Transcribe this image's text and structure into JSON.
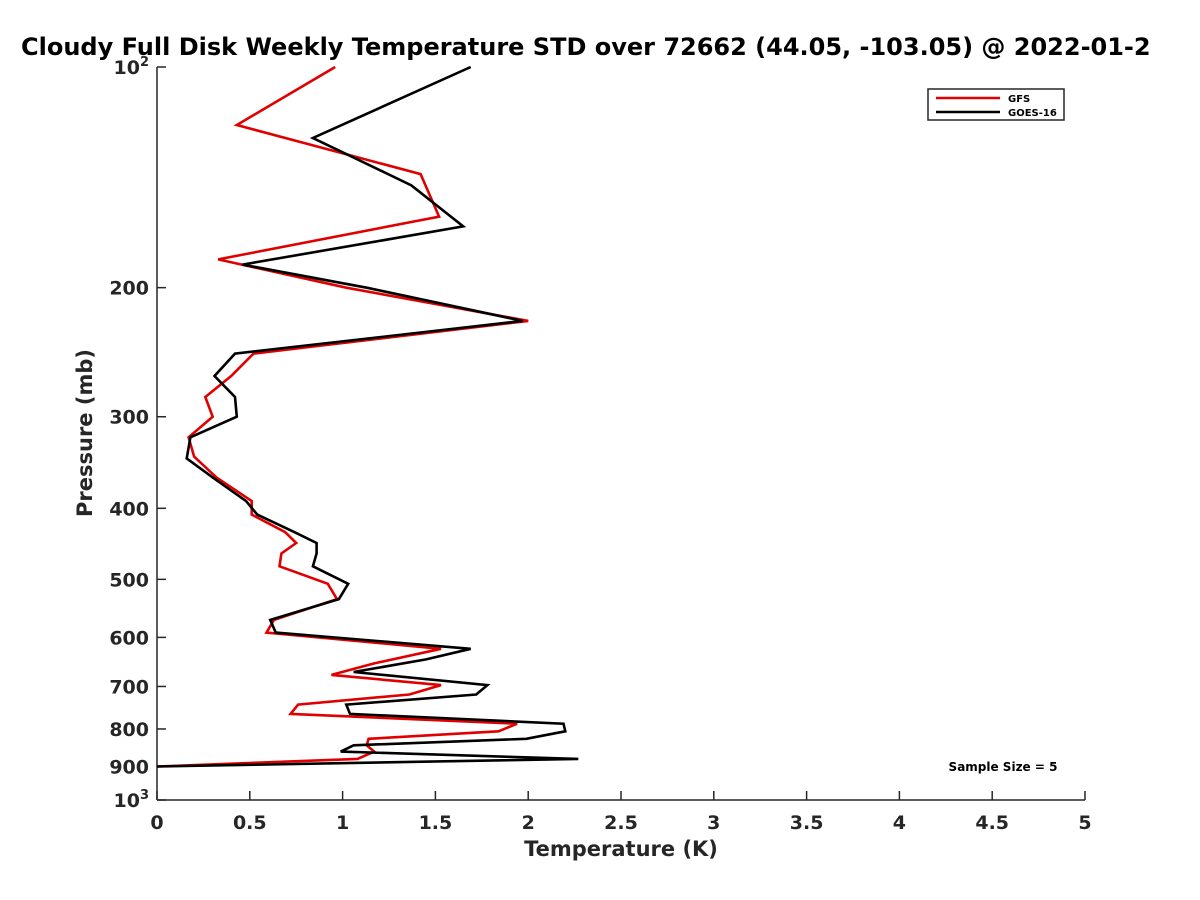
{
  "chart_data": {
    "type": "line",
    "title": "Cloudy Full Disk Weekly Temperature STD over 72662 (44.05, -103.05) @ 2022-01-2",
    "xlabel": "Temperature (K)",
    "ylabel": "Pressure (mb)",
    "xlim": [
      0,
      5
    ],
    "ylim": [
      100,
      1000
    ],
    "y_scale": "log",
    "y_reversed": true,
    "x_ticks": [
      "0",
      "0.5",
      "1",
      "1.5",
      "2",
      "2.5",
      "3",
      "3.5",
      "4",
      "4.5",
      "5"
    ],
    "y_ticks": [
      {
        "value": 100,
        "label": "10",
        "sup": "2"
      },
      {
        "value": 200,
        "label": "200",
        "sup": ""
      },
      {
        "value": 300,
        "label": "300",
        "sup": ""
      },
      {
        "value": 400,
        "label": "400",
        "sup": ""
      },
      {
        "value": 500,
        "label": "500",
        "sup": ""
      },
      {
        "value": 600,
        "label": "600",
        "sup": ""
      },
      {
        "value": 700,
        "label": "700",
        "sup": ""
      },
      {
        "value": 800,
        "label": "800",
        "sup": ""
      },
      {
        "value": 900,
        "label": "900",
        "sup": ""
      },
      {
        "value": 1000,
        "label": "10",
        "sup": "3"
      }
    ],
    "grid": false,
    "legend_position": "top-right",
    "annotation": "Sample Size = 5",
    "series": [
      {
        "name": "GFS",
        "color": "#e00000",
        "points": [
          [
            0.96,
            100
          ],
          [
            0.43,
            120
          ],
          [
            1.42,
            140
          ],
          [
            1.52,
            160
          ],
          [
            0.33,
            183
          ],
          [
            1.02,
            200
          ],
          [
            2.0,
            222
          ],
          [
            0.52,
            246
          ],
          [
            0.4,
            264
          ],
          [
            0.26,
            282
          ],
          [
            0.3,
            300
          ],
          [
            0.17,
            320
          ],
          [
            0.2,
            340
          ],
          [
            0.32,
            363
          ],
          [
            0.51,
            391
          ],
          [
            0.51,
            408
          ],
          [
            0.69,
            431
          ],
          [
            0.75,
            446
          ],
          [
            0.67,
            461
          ],
          [
            0.66,
            480
          ],
          [
            0.92,
            507
          ],
          [
            0.97,
            532
          ],
          [
            0.63,
            568
          ],
          [
            0.59,
            591
          ],
          [
            1.53,
            622
          ],
          [
            1.17,
            651
          ],
          [
            0.94,
            675
          ],
          [
            1.53,
            697
          ],
          [
            1.36,
            718
          ],
          [
            0.76,
            741
          ],
          [
            0.72,
            763
          ],
          [
            1.94,
            787
          ],
          [
            1.84,
            806
          ],
          [
            1.14,
            825
          ],
          [
            1.13,
            842
          ],
          [
            1.17,
            859
          ],
          [
            1.08,
            879
          ],
          [
            0.0,
            900
          ]
        ]
      },
      {
        "name": "GOES-16",
        "color": "#000000",
        "points": [
          [
            1.69,
            100
          ],
          [
            0.84,
            125
          ],
          [
            1.37,
            145
          ],
          [
            1.65,
            165
          ],
          [
            0.46,
            186
          ],
          [
            1.13,
            200
          ],
          [
            1.97,
            222
          ],
          [
            0.42,
            246
          ],
          [
            0.31,
            264
          ],
          [
            0.42,
            282
          ],
          [
            0.43,
            300
          ],
          [
            0.18,
            320
          ],
          [
            0.16,
            342
          ],
          [
            0.3,
            363
          ],
          [
            0.48,
            391
          ],
          [
            0.54,
            408
          ],
          [
            0.74,
            431
          ],
          [
            0.86,
            446
          ],
          [
            0.86,
            461
          ],
          [
            0.84,
            480
          ],
          [
            1.03,
            507
          ],
          [
            0.98,
            532
          ],
          [
            0.61,
            568
          ],
          [
            0.64,
            591
          ],
          [
            1.69,
            622
          ],
          [
            1.45,
            643
          ],
          [
            1.06,
            669
          ],
          [
            1.78,
            697
          ],
          [
            1.72,
            718
          ],
          [
            1.02,
            741
          ],
          [
            1.04,
            763
          ],
          [
            2.19,
            787
          ],
          [
            2.2,
            806
          ],
          [
            1.99,
            825
          ],
          [
            1.06,
            842
          ],
          [
            0.99,
            859
          ],
          [
            2.27,
            879
          ],
          [
            0.0,
            900
          ]
        ]
      }
    ]
  }
}
